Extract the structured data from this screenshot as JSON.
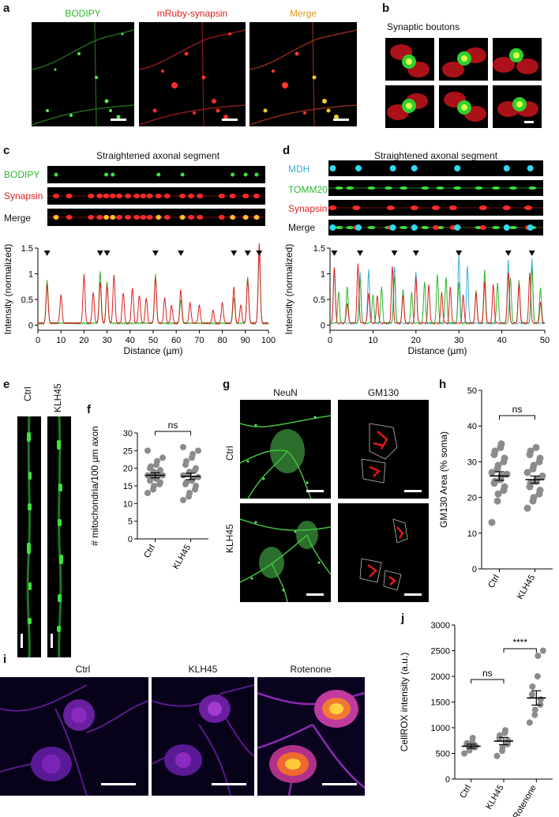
{
  "panels": {
    "a": {
      "letter": "a",
      "labels": [
        "BODIPY",
        "mRuby-synapsin",
        "Merge"
      ],
      "colors": [
        "#33cc33",
        "#e02020",
        "#e0a020"
      ]
    },
    "b": {
      "letter": "b",
      "title": "Synaptic boutons"
    },
    "c": {
      "letter": "c",
      "title": "Straightened axonal segment",
      "row_labels": [
        "BODIPY",
        "Synapsin",
        "Merge"
      ],
      "row_label_colors": [
        "#2db52d",
        "#e02020",
        "#111111"
      ]
    },
    "d": {
      "letter": "d",
      "title": "Straightened axonal segment",
      "row_labels": [
        "MDH",
        "TOMM20",
        "Synapsin",
        "Merge"
      ],
      "row_label_colors": [
        "#3ab0d8",
        "#2db52d",
        "#e02020",
        "#111111"
      ]
    },
    "e": {
      "letter": "e",
      "labels": [
        "Ctrl",
        "KLH45"
      ]
    },
    "f": {
      "letter": "f"
    },
    "g": {
      "letter": "g",
      "col_labels": [
        "NeuN",
        "GM130"
      ],
      "row_labels": [
        "Ctrl",
        "KLH45"
      ]
    },
    "h": {
      "letter": "h"
    },
    "i": {
      "letter": "i",
      "labels": [
        "Ctrl",
        "KLH45",
        "Rotenone"
      ]
    },
    "j": {
      "letter": "j"
    }
  },
  "chart_data": [
    {
      "panel": "c",
      "type": "line",
      "xlabel": "Distance (µm)",
      "ylabel": "Intensity (normalized)",
      "xlim": [
        0,
        100
      ],
      "ylim": [
        -0.1,
        1.5
      ],
      "xticks": [
        "0",
        "10",
        "20",
        "30",
        "40",
        "50",
        "60",
        "70",
        "80",
        "90",
        "100"
      ],
      "yticks": [
        "0",
        "0.5",
        "1",
        "1.5"
      ],
      "arrowheads_x": [
        4,
        27,
        30,
        51,
        62,
        85,
        91,
        96
      ],
      "series": [
        {
          "color": "#2db52d",
          "peaks": [
            [
              4,
              0.85
            ],
            [
              27,
              1.0
            ],
            [
              30,
              0.8
            ],
            [
              51,
              0.95
            ],
            [
              62,
              0.45
            ],
            [
              85,
              0.5
            ],
            [
              91,
              0.9
            ],
            [
              96,
              1.35
            ]
          ]
        },
        {
          "color": "#e02020",
          "peaks": [
            [
              4,
              0.75
            ],
            [
              10,
              0.55
            ],
            [
              20,
              0.95
            ],
            [
              24,
              0.6
            ],
            [
              27,
              0.8
            ],
            [
              30,
              0.75
            ],
            [
              33,
              0.95
            ],
            [
              37,
              0.6
            ],
            [
              41,
              0.7
            ],
            [
              44,
              0.55
            ],
            [
              47,
              0.5
            ],
            [
              51,
              0.9
            ],
            [
              55,
              0.5
            ],
            [
              58,
              0.35
            ],
            [
              62,
              0.65
            ],
            [
              66,
              0.4
            ],
            [
              70,
              0.35
            ],
            [
              76,
              0.25
            ],
            [
              80,
              0.4
            ],
            [
              85,
              0.7
            ],
            [
              88,
              0.35
            ],
            [
              91,
              0.85
            ],
            [
              96,
              1.55
            ]
          ]
        }
      ]
    },
    {
      "panel": "d",
      "type": "line",
      "xlabel": "Distance (µm)",
      "ylabel": "Intensity (normalized)",
      "xlim": [
        0,
        50
      ],
      "ylim": [
        -0.1,
        1.5
      ],
      "xticks": [
        "0",
        "10",
        "20",
        "30",
        "40",
        "50"
      ],
      "yticks": [
        "0",
        "0.5",
        "1",
        "1.5"
      ],
      "arrowheads_x": [
        1,
        7,
        15,
        20,
        30,
        41.5,
        47
      ],
      "series": [
        {
          "color": "#3ab0d8",
          "peaks": [
            [
              1,
              1.1
            ],
            [
              7,
              1.0
            ],
            [
              9,
              1.05
            ],
            [
              15,
              1.1
            ],
            [
              20,
              1.0
            ],
            [
              30,
              1.3
            ],
            [
              32,
              1.1
            ],
            [
              41.5,
              1.25
            ],
            [
              47,
              1.25
            ]
          ]
        },
        {
          "color": "#2db52d",
          "peaks": [
            [
              2,
              0.6
            ],
            [
              4,
              0.7
            ],
            [
              7,
              0.85
            ],
            [
              10,
              0.55
            ],
            [
              12,
              0.7
            ],
            [
              15,
              0.9
            ],
            [
              17,
              0.65
            ],
            [
              19,
              0.6
            ],
            [
              22,
              0.8
            ],
            [
              25,
              0.95
            ],
            [
              27,
              0.9
            ],
            [
              30,
              0.8
            ],
            [
              34,
              0.65
            ],
            [
              36,
              1.05
            ],
            [
              39,
              0.8
            ],
            [
              42,
              0.9
            ],
            [
              44,
              0.85
            ],
            [
              47,
              1.1
            ],
            [
              49,
              0.7
            ]
          ]
        },
        {
          "color": "#e02020",
          "peaks": [
            [
              1,
              1.1
            ],
            [
              4,
              0.4
            ],
            [
              6.5,
              1.15
            ],
            [
              9,
              0.6
            ],
            [
              11,
              0.55
            ],
            [
              14.5,
              1.1
            ],
            [
              17,
              0.55
            ],
            [
              20,
              0.9
            ],
            [
              23,
              0.75
            ],
            [
              26,
              0.6
            ],
            [
              28,
              0.7
            ],
            [
              31,
              0.55
            ],
            [
              34,
              0.6
            ],
            [
              36,
              0.8
            ],
            [
              38,
              0.75
            ],
            [
              41.5,
              1.0
            ],
            [
              44,
              0.75
            ],
            [
              46.5,
              1.0
            ],
            [
              49,
              0.4
            ]
          ]
        }
      ]
    },
    {
      "panel": "f",
      "type": "scatter",
      "ylabel": "# mitochondria/100 µm axon",
      "categories": [
        "Ctrl",
        "KLH45"
      ],
      "ylim": [
        0,
        30
      ],
      "yticks": [
        "0",
        "5",
        "10",
        "15",
        "20",
        "25",
        "30"
      ],
      "means": [
        18.0,
        17.7
      ],
      "sem": [
        0.7,
        0.9
      ],
      "comparison": {
        "from": 0,
        "to": 1,
        "label": "ns"
      },
      "points": [
        [
          13,
          14,
          15,
          15.5,
          16,
          16.5,
          17,
          17,
          17.5,
          18,
          18,
          18.5,
          19,
          19,
          19.5,
          20,
          20.5,
          21,
          22,
          23,
          25
        ],
        [
          11,
          12,
          13,
          14,
          15,
          15.5,
          16,
          16.5,
          17,
          17.5,
          18,
          18.5,
          19,
          19.5,
          20,
          21,
          22,
          23,
          24,
          25,
          26
        ]
      ]
    },
    {
      "panel": "h",
      "type": "scatter",
      "ylabel": "GM130 Area (% soma)",
      "categories": [
        "Ctrl",
        "KLH45"
      ],
      "ylim": [
        0,
        50
      ],
      "yticks": [
        "0",
        "10",
        "20",
        "30",
        "40",
        "50"
      ],
      "means": [
        26.0,
        25.0
      ],
      "sem": [
        1.2,
        1.0
      ],
      "comparison": {
        "from": 0,
        "to": 1,
        "label": "ns"
      },
      "points": [
        [
          13,
          19,
          21,
          22,
          23,
          24,
          24.5,
          25,
          26,
          26.5,
          27,
          28,
          29,
          30,
          31,
          32,
          33,
          34,
          35
        ],
        [
          17,
          19,
          20,
          21,
          22,
          23,
          24,
          24.5,
          25,
          26,
          27,
          28,
          29,
          30,
          31,
          32,
          33,
          34
        ]
      ]
    },
    {
      "panel": "j",
      "type": "scatter",
      "ylabel": "CellROX intensity (a.u.)",
      "categories": [
        "Ctrl",
        "KLH45",
        "Rotenone"
      ],
      "ylim": [
        0,
        3000
      ],
      "yticks": [
        "0",
        "500",
        "1000",
        "1500",
        "2000",
        "2500",
        "3000"
      ],
      "means": [
        640,
        740,
        1580
      ],
      "sem": [
        40,
        70,
        140
      ],
      "comparisons": [
        {
          "from": 0,
          "to": 1,
          "label": "ns"
        },
        {
          "from": 1,
          "to": 2,
          "label": "****"
        }
      ],
      "points": [
        [
          500,
          560,
          600,
          620,
          650,
          680,
          700,
          720,
          800
        ],
        [
          450,
          550,
          620,
          680,
          750,
          800,
          850,
          900,
          950
        ],
        [
          1100,
          1250,
          1350,
          1450,
          1550,
          1650,
          1800,
          2000,
          2400,
          2500
        ]
      ]
    }
  ]
}
